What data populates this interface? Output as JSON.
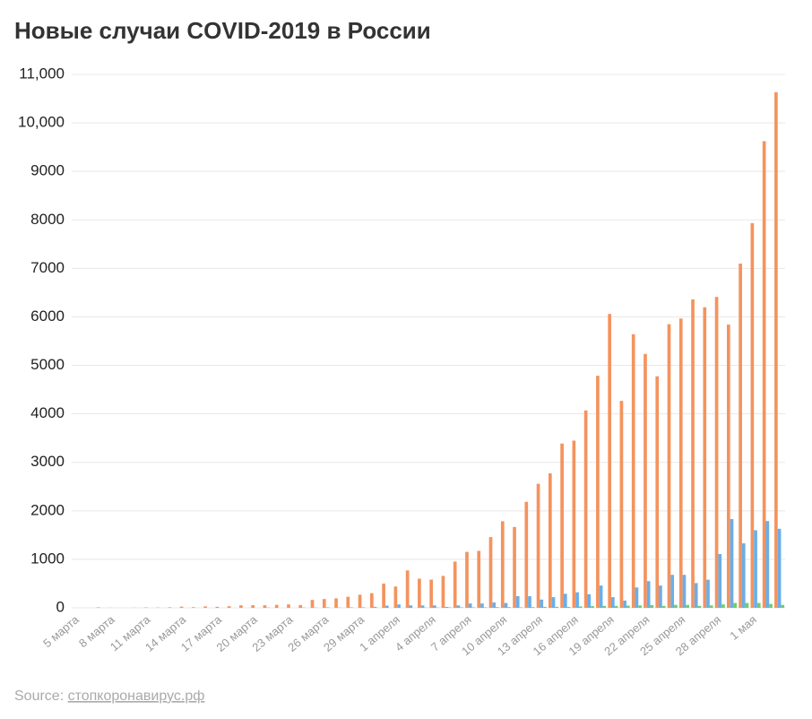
{
  "chart_data": {
    "type": "bar",
    "title": "Новые случаи COVID-2019 в России",
    "source": {
      "label": "Source:",
      "link": "стопкоронавирус.рф"
    },
    "categories": [
      "5 марта",
      null,
      null,
      "8 марта",
      null,
      null,
      "11 марта",
      null,
      null,
      "14 марта",
      null,
      null,
      "17 марта",
      null,
      null,
      "20 марта",
      null,
      null,
      "23 марта",
      null,
      null,
      "26 марта",
      null,
      null,
      "29 марта",
      null,
      null,
      "1 апреля",
      null,
      null,
      "4 апреля",
      null,
      null,
      "7 апреля",
      null,
      null,
      "10 апреля",
      null,
      null,
      "13 апреля",
      null,
      null,
      "16 апреля",
      null,
      null,
      "19 апреля",
      null,
      null,
      "22 апреля",
      null,
      null,
      "25 апреля",
      null,
      null,
      "28 апреля",
      null,
      null,
      "1 мая",
      null,
      null
    ],
    "series": [
      {
        "color": "#f4935e",
        "values": [
          0,
          0,
          10,
          3,
          0,
          3,
          8,
          6,
          11,
          25,
          14,
          30,
          21,
          33,
          52,
          54,
          53,
          61,
          71,
          57,
          163,
          182,
          196,
          228,
          270,
          302,
          500,
          440,
          771,
          601,
          582,
          658,
          954,
          1154,
          1175,
          1459,
          1786,
          1667,
          2186,
          2558,
          2774,
          3388,
          3448,
          4070,
          4785,
          6060,
          4268,
          5642,
          5236,
          4774,
          5849,
          5966,
          6361,
          6198,
          6411,
          5841,
          7099,
          7933,
          9623,
          10633
        ]
      },
      {
        "color": "#6aaee8",
        "values": [
          0,
          0,
          0,
          0,
          0,
          0,
          0,
          0,
          0,
          0,
          0,
          0,
          0,
          0,
          0,
          0,
          5,
          0,
          0,
          5,
          5,
          10,
          5,
          10,
          10,
          20,
          45,
          70,
          50,
          50,
          50,
          20,
          50,
          90,
          90,
          110,
          100,
          240,
          240,
          170,
          220,
          290,
          320,
          280,
          460,
          220,
          150,
          420,
          550,
          460,
          680,
          680,
          510,
          580,
          1110,
          1830,
          1330,
          1600,
          1790,
          1630
        ]
      },
      {
        "color": "#6ccf6a",
        "values": [
          0,
          0,
          0,
          0,
          0,
          0,
          0,
          0,
          0,
          0,
          0,
          0,
          0,
          0,
          0,
          0,
          0,
          0,
          0,
          0,
          0,
          0,
          0,
          0,
          0,
          0,
          0,
          0,
          0,
          5,
          5,
          10,
          10,
          10,
          10,
          15,
          15,
          10,
          15,
          20,
          20,
          20,
          30,
          35,
          40,
          40,
          45,
          50,
          55,
          40,
          60,
          60,
          40,
          50,
          70,
          100,
          100,
          100,
          80,
          60
        ]
      }
    ],
    "ylim": [
      0,
      11000
    ],
    "yticks": [
      0,
      1000,
      2000,
      3000,
      4000,
      5000,
      6000,
      7000,
      8000,
      9000,
      {
        "value": 10000,
        "label": "10,000"
      },
      {
        "value": 11000,
        "label": "11,000"
      }
    ],
    "grid": true
  }
}
